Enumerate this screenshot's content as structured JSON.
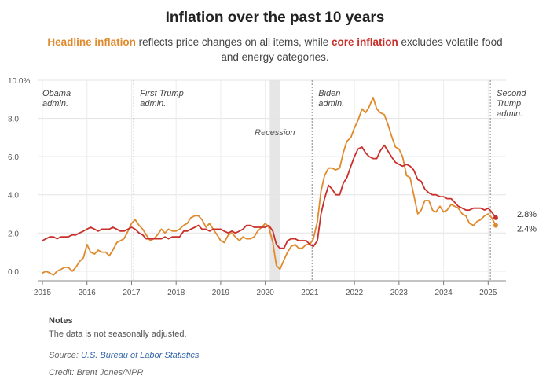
{
  "chart_data": {
    "type": "line",
    "title": "Inflation over the past 10 years",
    "subtitle": {
      "headline_term": "Headline inflation",
      "part1": " reflects price changes on all items, while ",
      "core_term": "core inflation",
      "part2": " excludes volatile food and energy categories."
    },
    "ylim": [
      -0.5,
      10
    ],
    "xlim": [
      2015,
      2025.4
    ],
    "y_ticks": [
      "10.0%",
      "8.0",
      "6.0",
      "4.0",
      "2.0",
      "0.0"
    ],
    "y_tick_values": [
      10,
      8,
      6,
      4,
      2,
      0
    ],
    "x_ticks": [
      "2015",
      "2016",
      "2017",
      "2018",
      "2019",
      "2020",
      "2021",
      "2022",
      "2023",
      "2024",
      "2025"
    ],
    "x_tick_values": [
      2015,
      2016,
      2017,
      2018,
      2019,
      2020,
      2021,
      2022,
      2023,
      2024,
      2025
    ],
    "recession": {
      "label": "Recession",
      "start": 2020.1,
      "end": 2020.33
    },
    "eras": [
      {
        "x": 2015,
        "label_lines": [
          "Obama",
          "admin."
        ]
      },
      {
        "x": 2017.05,
        "label_lines": [
          "First Trump",
          "admin."
        ]
      },
      {
        "x": 2021.05,
        "label_lines": [
          "Biden",
          "admin."
        ]
      },
      {
        "x": 2025.05,
        "label_lines": [
          "Second",
          "Trump",
          "admin."
        ]
      }
    ],
    "series": [
      {
        "name": "Headline inflation",
        "color": "#e08a2e",
        "end_label": "2.4%",
        "points": [
          [
            2015.0,
            -0.1
          ],
          [
            2015.08,
            0.0
          ],
          [
            2015.17,
            -0.1
          ],
          [
            2015.25,
            -0.2
          ],
          [
            2015.33,
            0.0
          ],
          [
            2015.5,
            0.2
          ],
          [
            2015.58,
            0.2
          ],
          [
            2015.67,
            0.0
          ],
          [
            2015.75,
            0.2
          ],
          [
            2015.83,
            0.5
          ],
          [
            2015.92,
            0.7
          ],
          [
            2016.0,
            1.4
          ],
          [
            2016.08,
            1.0
          ],
          [
            2016.17,
            0.9
          ],
          [
            2016.25,
            1.1
          ],
          [
            2016.33,
            1.0
          ],
          [
            2016.42,
            1.0
          ],
          [
            2016.5,
            0.8
          ],
          [
            2016.58,
            1.1
          ],
          [
            2016.67,
            1.5
          ],
          [
            2016.75,
            1.6
          ],
          [
            2016.83,
            1.7
          ],
          [
            2016.92,
            2.1
          ],
          [
            2017.0,
            2.5
          ],
          [
            2017.08,
            2.7
          ],
          [
            2017.17,
            2.4
          ],
          [
            2017.25,
            2.2
          ],
          [
            2017.33,
            1.9
          ],
          [
            2017.42,
            1.6
          ],
          [
            2017.5,
            1.7
          ],
          [
            2017.58,
            1.9
          ],
          [
            2017.67,
            2.2
          ],
          [
            2017.75,
            2.0
          ],
          [
            2017.83,
            2.2
          ],
          [
            2017.92,
            2.1
          ],
          [
            2018.0,
            2.1
          ],
          [
            2018.08,
            2.2
          ],
          [
            2018.17,
            2.4
          ],
          [
            2018.25,
            2.5
          ],
          [
            2018.33,
            2.8
          ],
          [
            2018.42,
            2.9
          ],
          [
            2018.5,
            2.9
          ],
          [
            2018.58,
            2.7
          ],
          [
            2018.67,
            2.3
          ],
          [
            2018.75,
            2.5
          ],
          [
            2018.83,
            2.2
          ],
          [
            2018.92,
            1.9
          ],
          [
            2019.0,
            1.6
          ],
          [
            2019.08,
            1.5
          ],
          [
            2019.17,
            1.9
          ],
          [
            2019.25,
            2.0
          ],
          [
            2019.33,
            1.8
          ],
          [
            2019.42,
            1.6
          ],
          [
            2019.5,
            1.8
          ],
          [
            2019.58,
            1.7
          ],
          [
            2019.67,
            1.7
          ],
          [
            2019.75,
            1.8
          ],
          [
            2019.83,
            2.1
          ],
          [
            2019.92,
            2.3
          ],
          [
            2020.0,
            2.5
          ],
          [
            2020.08,
            2.3
          ],
          [
            2020.17,
            1.5
          ],
          [
            2020.25,
            0.3
          ],
          [
            2020.33,
            0.1
          ],
          [
            2020.42,
            0.6
          ],
          [
            2020.5,
            1.0
          ],
          [
            2020.58,
            1.3
          ],
          [
            2020.67,
            1.4
          ],
          [
            2020.75,
            1.2
          ],
          [
            2020.83,
            1.2
          ],
          [
            2020.92,
            1.4
          ],
          [
            2021.0,
            1.4
          ],
          [
            2021.08,
            1.7
          ],
          [
            2021.17,
            2.6
          ],
          [
            2021.25,
            4.2
          ],
          [
            2021.33,
            5.0
          ],
          [
            2021.42,
            5.4
          ],
          [
            2021.5,
            5.4
          ],
          [
            2021.58,
            5.3
          ],
          [
            2021.67,
            5.4
          ],
          [
            2021.75,
            6.2
          ],
          [
            2021.83,
            6.8
          ],
          [
            2021.92,
            7.0
          ],
          [
            2022.0,
            7.5
          ],
          [
            2022.08,
            7.9
          ],
          [
            2022.17,
            8.5
          ],
          [
            2022.25,
            8.3
          ],
          [
            2022.33,
            8.6
          ],
          [
            2022.42,
            9.1
          ],
          [
            2022.5,
            8.5
          ],
          [
            2022.58,
            8.3
          ],
          [
            2022.67,
            8.2
          ],
          [
            2022.75,
            7.7
          ],
          [
            2022.83,
            7.1
          ],
          [
            2022.92,
            6.5
          ],
          [
            2023.0,
            6.4
          ],
          [
            2023.08,
            6.0
          ],
          [
            2023.17,
            5.0
          ],
          [
            2023.25,
            4.9
          ],
          [
            2023.33,
            4.0
          ],
          [
            2023.42,
            3.0
          ],
          [
            2023.5,
            3.2
          ],
          [
            2023.58,
            3.7
          ],
          [
            2023.67,
            3.7
          ],
          [
            2023.75,
            3.2
          ],
          [
            2023.83,
            3.1
          ],
          [
            2023.92,
            3.4
          ],
          [
            2024.0,
            3.1
          ],
          [
            2024.08,
            3.2
          ],
          [
            2024.17,
            3.5
          ],
          [
            2024.25,
            3.4
          ],
          [
            2024.33,
            3.3
          ],
          [
            2024.42,
            3.0
          ],
          [
            2024.5,
            2.9
          ],
          [
            2024.58,
            2.5
          ],
          [
            2024.67,
            2.4
          ],
          [
            2024.75,
            2.6
          ],
          [
            2024.83,
            2.7
          ],
          [
            2024.92,
            2.9
          ],
          [
            2025.0,
            3.0
          ],
          [
            2025.08,
            2.8
          ],
          [
            2025.17,
            2.4
          ]
        ]
      },
      {
        "name": "Core inflation",
        "color": "#c9302c",
        "end_label": "2.8%",
        "points": [
          [
            2015.0,
            1.6
          ],
          [
            2015.08,
            1.7
          ],
          [
            2015.17,
            1.8
          ],
          [
            2015.25,
            1.8
          ],
          [
            2015.33,
            1.7
          ],
          [
            2015.42,
            1.8
          ],
          [
            2015.5,
            1.8
          ],
          [
            2015.58,
            1.8
          ],
          [
            2015.67,
            1.9
          ],
          [
            2015.75,
            1.9
          ],
          [
            2015.83,
            2.0
          ],
          [
            2015.92,
            2.1
          ],
          [
            2016.0,
            2.2
          ],
          [
            2016.08,
            2.3
          ],
          [
            2016.17,
            2.2
          ],
          [
            2016.25,
            2.1
          ],
          [
            2016.33,
            2.2
          ],
          [
            2016.42,
            2.2
          ],
          [
            2016.5,
            2.2
          ],
          [
            2016.58,
            2.3
          ],
          [
            2016.67,
            2.2
          ],
          [
            2016.75,
            2.1
          ],
          [
            2016.83,
            2.1
          ],
          [
            2016.92,
            2.2
          ],
          [
            2017.0,
            2.3
          ],
          [
            2017.08,
            2.2
          ],
          [
            2017.17,
            2.0
          ],
          [
            2017.25,
            1.9
          ],
          [
            2017.33,
            1.7
          ],
          [
            2017.42,
            1.7
          ],
          [
            2017.5,
            1.7
          ],
          [
            2017.58,
            1.7
          ],
          [
            2017.67,
            1.7
          ],
          [
            2017.75,
            1.8
          ],
          [
            2017.83,
            1.7
          ],
          [
            2017.92,
            1.8
          ],
          [
            2018.0,
            1.8
          ],
          [
            2018.08,
            1.8
          ],
          [
            2018.17,
            2.1
          ],
          [
            2018.25,
            2.1
          ],
          [
            2018.33,
            2.2
          ],
          [
            2018.42,
            2.3
          ],
          [
            2018.5,
            2.4
          ],
          [
            2018.58,
            2.2
          ],
          [
            2018.67,
            2.2
          ],
          [
            2018.75,
            2.1
          ],
          [
            2018.83,
            2.2
          ],
          [
            2018.92,
            2.2
          ],
          [
            2019.0,
            2.2
          ],
          [
            2019.08,
            2.1
          ],
          [
            2019.17,
            2.0
          ],
          [
            2019.25,
            2.1
          ],
          [
            2019.33,
            2.0
          ],
          [
            2019.42,
            2.1
          ],
          [
            2019.5,
            2.2
          ],
          [
            2019.58,
            2.4
          ],
          [
            2019.67,
            2.4
          ],
          [
            2019.75,
            2.3
          ],
          [
            2019.83,
            2.3
          ],
          [
            2019.92,
            2.3
          ],
          [
            2020.0,
            2.3
          ],
          [
            2020.08,
            2.4
          ],
          [
            2020.17,
            2.1
          ],
          [
            2020.25,
            1.4
          ],
          [
            2020.33,
            1.2
          ],
          [
            2020.42,
            1.2
          ],
          [
            2020.5,
            1.6
          ],
          [
            2020.58,
            1.7
          ],
          [
            2020.67,
            1.7
          ],
          [
            2020.75,
            1.6
          ],
          [
            2020.83,
            1.6
          ],
          [
            2020.92,
            1.6
          ],
          [
            2021.0,
            1.4
          ],
          [
            2021.08,
            1.3
          ],
          [
            2021.17,
            1.6
          ],
          [
            2021.25,
            3.0
          ],
          [
            2021.33,
            3.8
          ],
          [
            2021.42,
            4.5
          ],
          [
            2021.5,
            4.3
          ],
          [
            2021.58,
            4.0
          ],
          [
            2021.67,
            4.0
          ],
          [
            2021.75,
            4.6
          ],
          [
            2021.83,
            4.9
          ],
          [
            2021.92,
            5.5
          ],
          [
            2022.0,
            6.0
          ],
          [
            2022.08,
            6.4
          ],
          [
            2022.17,
            6.5
          ],
          [
            2022.25,
            6.2
          ],
          [
            2022.33,
            6.0
          ],
          [
            2022.42,
            5.9
          ],
          [
            2022.5,
            5.9
          ],
          [
            2022.58,
            6.3
          ],
          [
            2022.67,
            6.6
          ],
          [
            2022.75,
            6.3
          ],
          [
            2022.83,
            6.0
          ],
          [
            2022.92,
            5.7
          ],
          [
            2023.0,
            5.6
          ],
          [
            2023.08,
            5.5
          ],
          [
            2023.17,
            5.6
          ],
          [
            2023.25,
            5.5
          ],
          [
            2023.33,
            5.3
          ],
          [
            2023.42,
            4.8
          ],
          [
            2023.5,
            4.7
          ],
          [
            2023.58,
            4.3
          ],
          [
            2023.67,
            4.1
          ],
          [
            2023.75,
            4.0
          ],
          [
            2023.83,
            4.0
          ],
          [
            2023.92,
            3.9
          ],
          [
            2024.0,
            3.9
          ],
          [
            2024.08,
            3.8
          ],
          [
            2024.17,
            3.8
          ],
          [
            2024.25,
            3.6
          ],
          [
            2024.33,
            3.4
          ],
          [
            2024.42,
            3.3
          ],
          [
            2024.5,
            3.2
          ],
          [
            2024.58,
            3.2
          ],
          [
            2024.67,
            3.3
          ],
          [
            2024.75,
            3.3
          ],
          [
            2024.83,
            3.3
          ],
          [
            2024.92,
            3.2
          ],
          [
            2025.0,
            3.3
          ],
          [
            2025.08,
            3.1
          ],
          [
            2025.17,
            2.8
          ]
        ]
      }
    ]
  },
  "notes": {
    "heading": "Notes",
    "text": "The data is not seasonally adjusted."
  },
  "source": {
    "prefix": "Source: ",
    "link_text": "U.S. Bureau of Labor Statistics"
  },
  "credit": "Credit: Brent Jones/NPR"
}
